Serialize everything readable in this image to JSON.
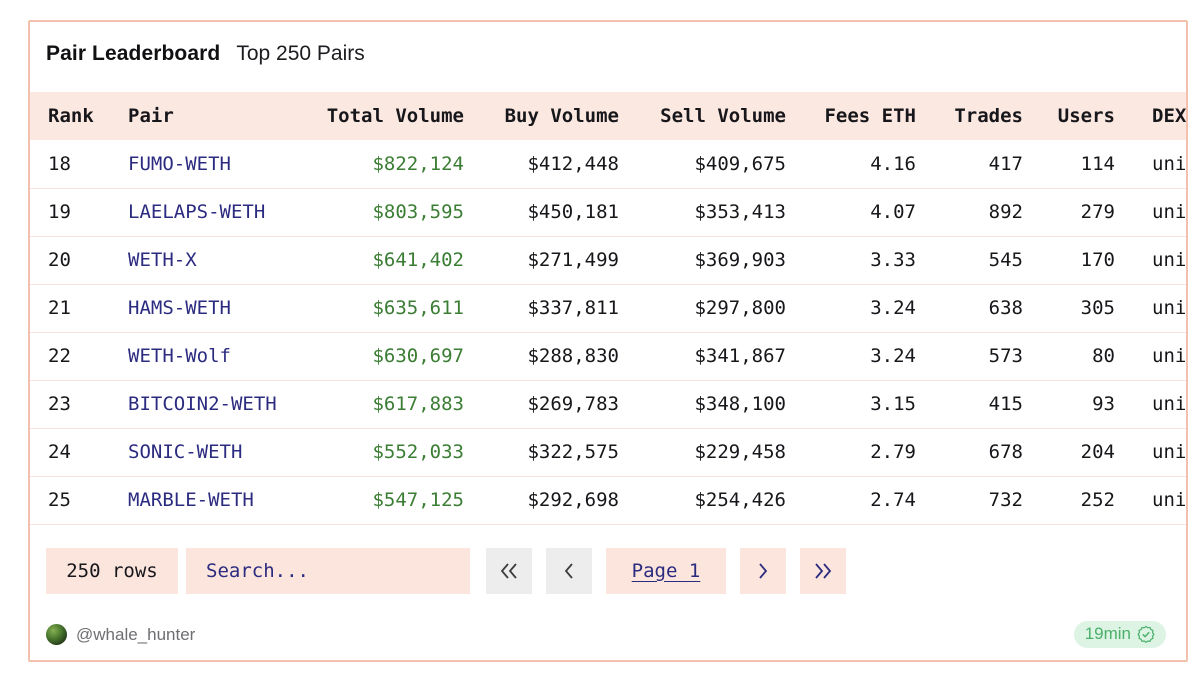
{
  "card": {
    "title": "Pair Leaderboard",
    "subtitle": "Top 250 Pairs"
  },
  "table": {
    "columns": [
      {
        "key": "rank",
        "label": "Rank",
        "align": "left"
      },
      {
        "key": "pair",
        "label": "Pair",
        "align": "left"
      },
      {
        "key": "total_volume",
        "label": "Total Volume",
        "align": "right"
      },
      {
        "key": "buy_volume",
        "label": "Buy Volume",
        "align": "right"
      },
      {
        "key": "sell_volume",
        "label": "Sell Volume",
        "align": "right"
      },
      {
        "key": "fees_eth",
        "label": "Fees ETH",
        "align": "right"
      },
      {
        "key": "trades",
        "label": "Trades",
        "align": "right"
      },
      {
        "key": "users",
        "label": "Users",
        "align": "right"
      },
      {
        "key": "dex",
        "label": "DEX",
        "align": "left"
      }
    ],
    "rows": [
      {
        "rank": "18",
        "pair": "FUMO-WETH",
        "total_volume": "$822,124",
        "buy_volume": "$412,448",
        "sell_volume": "$409,675",
        "fees_eth": "4.16",
        "trades": "417",
        "users": "114",
        "dex": "uni"
      },
      {
        "rank": "19",
        "pair": "LAELAPS-WETH",
        "total_volume": "$803,595",
        "buy_volume": "$450,181",
        "sell_volume": "$353,413",
        "fees_eth": "4.07",
        "trades": "892",
        "users": "279",
        "dex": "uni"
      },
      {
        "rank": "20",
        "pair": "WETH-X",
        "total_volume": "$641,402",
        "buy_volume": "$271,499",
        "sell_volume": "$369,903",
        "fees_eth": "3.33",
        "trades": "545",
        "users": "170",
        "dex": "uni"
      },
      {
        "rank": "21",
        "pair": "HAMS-WETH",
        "total_volume": "$635,611",
        "buy_volume": "$337,811",
        "sell_volume": "$297,800",
        "fees_eth": "3.24",
        "trades": "638",
        "users": "305",
        "dex": "uni"
      },
      {
        "rank": "22",
        "pair": "WETH-Wolf",
        "total_volume": "$630,697",
        "buy_volume": "$288,830",
        "sell_volume": "$341,867",
        "fees_eth": "3.24",
        "trades": "573",
        "users": "80",
        "dex": "uni"
      },
      {
        "rank": "23",
        "pair": "BITCOIN2-WETH",
        "total_volume": "$617,883",
        "buy_volume": "$269,783",
        "sell_volume": "$348,100",
        "fees_eth": "3.15",
        "trades": "415",
        "users": "93",
        "dex": "uni"
      },
      {
        "rank": "24",
        "pair": "SONIC-WETH",
        "total_volume": "$552,033",
        "buy_volume": "$322,575",
        "sell_volume": "$229,458",
        "fees_eth": "2.79",
        "trades": "678",
        "users": "204",
        "dex": "uni"
      },
      {
        "rank": "25",
        "pair": "MARBLE-WETH",
        "total_volume": "$547,125",
        "buy_volume": "$292,698",
        "sell_volume": "$254,426",
        "fees_eth": "2.74",
        "trades": "732",
        "users": "252",
        "dex": "uni"
      }
    ]
  },
  "controls": {
    "row_count_label": "250 rows",
    "search_placeholder": "Search...",
    "pagination": {
      "first_icon": "chevron-double-left-icon",
      "prev_icon": "chevron-left-icon",
      "page_label": "Page 1",
      "next_icon": "chevron-right-icon",
      "last_icon": "chevron-double-right-icon"
    }
  },
  "footer": {
    "author_handle": "@whale_hunter",
    "freshness_label": "19min"
  },
  "colors": {
    "card_border": "#f3c0ae",
    "table_header_bg": "#fbe8e1",
    "row_divider": "#f9e2da",
    "pair_link_text": "#2b2b80",
    "total_volume_text": "#3a7d33",
    "pink_control_bg": "#fbe5dd",
    "gray_control_bg": "#ededed",
    "freshness_badge_bg": "#ddf3e4",
    "freshness_badge_text": "#4ab06a"
  }
}
